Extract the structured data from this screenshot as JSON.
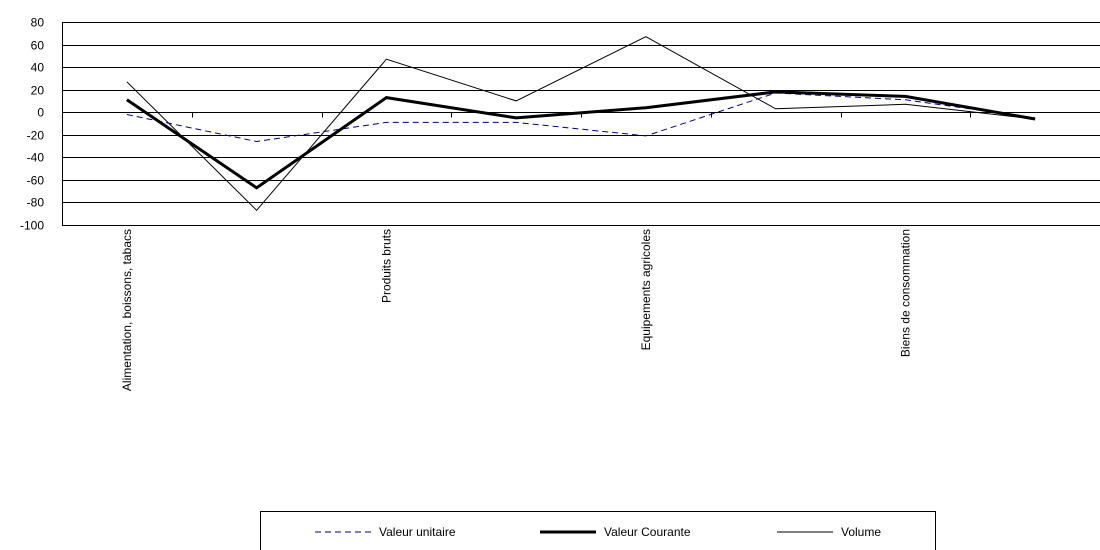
{
  "chart_data": {
    "type": "line",
    "categories": [
      "Alimentation, boissons, tabacs",
      "",
      "Produits bruts",
      "",
      "Equipements agricoles",
      "",
      "Biens de consommation",
      ""
    ],
    "ylim": [
      -100,
      80
    ],
    "yticks": [
      -100,
      -80,
      -60,
      -40,
      -20,
      0,
      20,
      40,
      60,
      80
    ],
    "grid": true,
    "legend_position": "bottom",
    "series": [
      {
        "name": "Valeur unitaire",
        "style": "dashed",
        "color": "#000080",
        "values": [
          -2,
          -26,
          -9,
          -9,
          -21,
          17,
          11,
          -5
        ]
      },
      {
        "name": "Valeur Courante",
        "style": "thick",
        "color": "#000000",
        "values": [
          11,
          -67,
          13,
          -5,
          4,
          18,
          14,
          -6
        ]
      },
      {
        "name": "Volume",
        "style": "thin",
        "color": "#000000",
        "values": [
          27,
          -87,
          47,
          10,
          67,
          3,
          7,
          -6
        ]
      }
    ]
  }
}
